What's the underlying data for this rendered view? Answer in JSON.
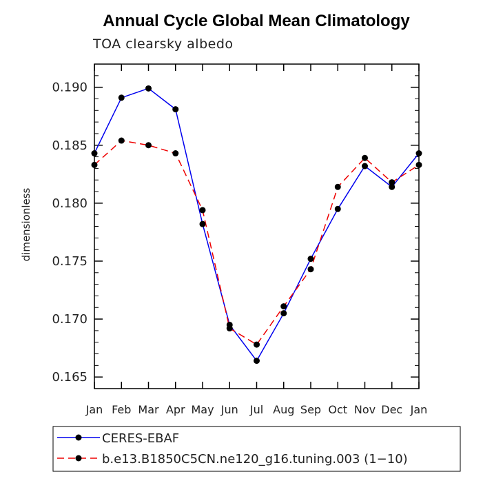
{
  "chart_data": {
    "type": "line",
    "title": "Annual Cycle Global Mean Climatology",
    "subtitle": "TOA clearsky albedo",
    "xlabel": "",
    "ylabel": "dimensionless",
    "categories": [
      "Jan",
      "Feb",
      "Mar",
      "Apr",
      "May",
      "Jun",
      "Jul",
      "Aug",
      "Sep",
      "Oct",
      "Nov",
      "Dec",
      "Jan"
    ],
    "ylim": [
      0.164,
      0.192
    ],
    "yticks": [
      0.165,
      0.17,
      0.175,
      0.18,
      0.185,
      0.19
    ],
    "ytick_labels": [
      "0.165",
      "0.170",
      "0.175",
      "0.180",
      "0.185",
      "0.190"
    ],
    "grid": false,
    "legend_position": "bottom",
    "series": [
      {
        "name": "CERES-EBAF",
        "color": "#0000ee",
        "dash": "solid",
        "values": [
          0.1843,
          0.1891,
          0.1899,
          0.1881,
          0.1782,
          0.1695,
          0.1664,
          0.1705,
          0.1752,
          0.1795,
          0.1832,
          0.1814,
          0.1843
        ]
      },
      {
        "name": "b.e13.B1850C5CN.ne120_g16.tuning.003 (1−10)",
        "color": "#ee0000",
        "dash": "dashed",
        "values": [
          0.1833,
          0.1854,
          0.185,
          0.1843,
          0.1794,
          0.1692,
          0.1678,
          0.1711,
          0.1743,
          0.1814,
          0.1839,
          0.1818,
          0.1833
        ]
      }
    ]
  }
}
